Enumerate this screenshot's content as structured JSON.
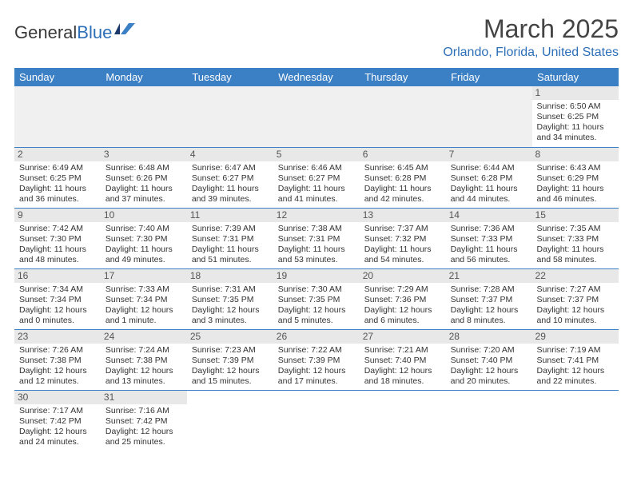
{
  "logo": {
    "textA": "General",
    "textB": "Blue"
  },
  "title": "March 2025",
  "location": "Orlando, Florida, United States",
  "colors": {
    "headerBg": "#3b7fc4",
    "headerText": "#ffffff",
    "dayNumBg": "#e8e8e8",
    "emptyBg": "#f0f0f0",
    "borderColor": "#3b7fc4",
    "accent": "#2d6fb7",
    "bodyText": "#333333"
  },
  "typography": {
    "titleFontSize": 32,
    "locationFontSize": 16,
    "headerFontSize": 13,
    "cellFontSize": 10.5,
    "dayNumFontSize": 12
  },
  "weekdays": [
    "Sunday",
    "Monday",
    "Tuesday",
    "Wednesday",
    "Thursday",
    "Friday",
    "Saturday"
  ],
  "weeks": [
    [
      null,
      null,
      null,
      null,
      null,
      null,
      {
        "n": "1",
        "sr": "Sunrise: 6:50 AM",
        "ss": "Sunset: 6:25 PM",
        "dl": "Daylight: 11 hours and 34 minutes."
      }
    ],
    [
      {
        "n": "2",
        "sr": "Sunrise: 6:49 AM",
        "ss": "Sunset: 6:25 PM",
        "dl": "Daylight: 11 hours and 36 minutes."
      },
      {
        "n": "3",
        "sr": "Sunrise: 6:48 AM",
        "ss": "Sunset: 6:26 PM",
        "dl": "Daylight: 11 hours and 37 minutes."
      },
      {
        "n": "4",
        "sr": "Sunrise: 6:47 AM",
        "ss": "Sunset: 6:27 PM",
        "dl": "Daylight: 11 hours and 39 minutes."
      },
      {
        "n": "5",
        "sr": "Sunrise: 6:46 AM",
        "ss": "Sunset: 6:27 PM",
        "dl": "Daylight: 11 hours and 41 minutes."
      },
      {
        "n": "6",
        "sr": "Sunrise: 6:45 AM",
        "ss": "Sunset: 6:28 PM",
        "dl": "Daylight: 11 hours and 42 minutes."
      },
      {
        "n": "7",
        "sr": "Sunrise: 6:44 AM",
        "ss": "Sunset: 6:28 PM",
        "dl": "Daylight: 11 hours and 44 minutes."
      },
      {
        "n": "8",
        "sr": "Sunrise: 6:43 AM",
        "ss": "Sunset: 6:29 PM",
        "dl": "Daylight: 11 hours and 46 minutes."
      }
    ],
    [
      {
        "n": "9",
        "sr": "Sunrise: 7:42 AM",
        "ss": "Sunset: 7:30 PM",
        "dl": "Daylight: 11 hours and 48 minutes."
      },
      {
        "n": "10",
        "sr": "Sunrise: 7:40 AM",
        "ss": "Sunset: 7:30 PM",
        "dl": "Daylight: 11 hours and 49 minutes."
      },
      {
        "n": "11",
        "sr": "Sunrise: 7:39 AM",
        "ss": "Sunset: 7:31 PM",
        "dl": "Daylight: 11 hours and 51 minutes."
      },
      {
        "n": "12",
        "sr": "Sunrise: 7:38 AM",
        "ss": "Sunset: 7:31 PM",
        "dl": "Daylight: 11 hours and 53 minutes."
      },
      {
        "n": "13",
        "sr": "Sunrise: 7:37 AM",
        "ss": "Sunset: 7:32 PM",
        "dl": "Daylight: 11 hours and 54 minutes."
      },
      {
        "n": "14",
        "sr": "Sunrise: 7:36 AM",
        "ss": "Sunset: 7:33 PM",
        "dl": "Daylight: 11 hours and 56 minutes."
      },
      {
        "n": "15",
        "sr": "Sunrise: 7:35 AM",
        "ss": "Sunset: 7:33 PM",
        "dl": "Daylight: 11 hours and 58 minutes."
      }
    ],
    [
      {
        "n": "16",
        "sr": "Sunrise: 7:34 AM",
        "ss": "Sunset: 7:34 PM",
        "dl": "Daylight: 12 hours and 0 minutes."
      },
      {
        "n": "17",
        "sr": "Sunrise: 7:33 AM",
        "ss": "Sunset: 7:34 PM",
        "dl": "Daylight: 12 hours and 1 minute."
      },
      {
        "n": "18",
        "sr": "Sunrise: 7:31 AM",
        "ss": "Sunset: 7:35 PM",
        "dl": "Daylight: 12 hours and 3 minutes."
      },
      {
        "n": "19",
        "sr": "Sunrise: 7:30 AM",
        "ss": "Sunset: 7:35 PM",
        "dl": "Daylight: 12 hours and 5 minutes."
      },
      {
        "n": "20",
        "sr": "Sunrise: 7:29 AM",
        "ss": "Sunset: 7:36 PM",
        "dl": "Daylight: 12 hours and 6 minutes."
      },
      {
        "n": "21",
        "sr": "Sunrise: 7:28 AM",
        "ss": "Sunset: 7:37 PM",
        "dl": "Daylight: 12 hours and 8 minutes."
      },
      {
        "n": "22",
        "sr": "Sunrise: 7:27 AM",
        "ss": "Sunset: 7:37 PM",
        "dl": "Daylight: 12 hours and 10 minutes."
      }
    ],
    [
      {
        "n": "23",
        "sr": "Sunrise: 7:26 AM",
        "ss": "Sunset: 7:38 PM",
        "dl": "Daylight: 12 hours and 12 minutes."
      },
      {
        "n": "24",
        "sr": "Sunrise: 7:24 AM",
        "ss": "Sunset: 7:38 PM",
        "dl": "Daylight: 12 hours and 13 minutes."
      },
      {
        "n": "25",
        "sr": "Sunrise: 7:23 AM",
        "ss": "Sunset: 7:39 PM",
        "dl": "Daylight: 12 hours and 15 minutes."
      },
      {
        "n": "26",
        "sr": "Sunrise: 7:22 AM",
        "ss": "Sunset: 7:39 PM",
        "dl": "Daylight: 12 hours and 17 minutes."
      },
      {
        "n": "27",
        "sr": "Sunrise: 7:21 AM",
        "ss": "Sunset: 7:40 PM",
        "dl": "Daylight: 12 hours and 18 minutes."
      },
      {
        "n": "28",
        "sr": "Sunrise: 7:20 AM",
        "ss": "Sunset: 7:40 PM",
        "dl": "Daylight: 12 hours and 20 minutes."
      },
      {
        "n": "29",
        "sr": "Sunrise: 7:19 AM",
        "ss": "Sunset: 7:41 PM",
        "dl": "Daylight: 12 hours and 22 minutes."
      }
    ],
    [
      {
        "n": "30",
        "sr": "Sunrise: 7:17 AM",
        "ss": "Sunset: 7:42 PM",
        "dl": "Daylight: 12 hours and 24 minutes."
      },
      {
        "n": "31",
        "sr": "Sunrise: 7:16 AM",
        "ss": "Sunset: 7:42 PM",
        "dl": "Daylight: 12 hours and 25 minutes."
      },
      null,
      null,
      null,
      null,
      null
    ]
  ]
}
